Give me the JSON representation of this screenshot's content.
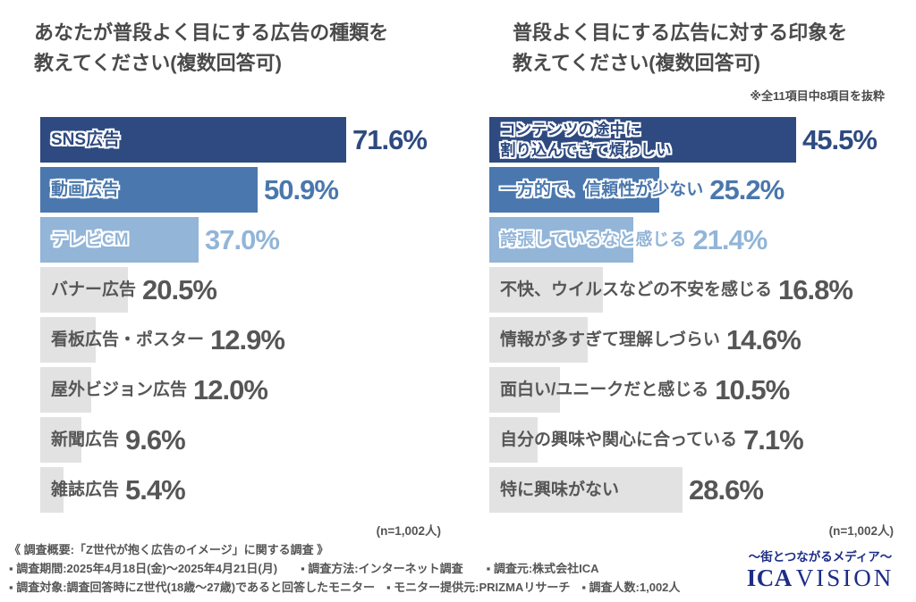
{
  "titles": {
    "left_line1": "あなたが普段よく目にする広告の種類を",
    "left_line2": "教えてください(複数回答可)",
    "right_line1": "普段よく目にする広告に対する印象を",
    "right_line2": "教えてください(複数回答可)"
  },
  "colors": {
    "navy": "#2e4a80",
    "blue": "#4a77ad",
    "light_blue": "#92b5d8",
    "gray_bar": "#e2e2e2",
    "gray_text": "#565656",
    "title_text": "#4a4a4a",
    "footer_text": "#555555",
    "logo_navy": "#1d2d87"
  },
  "chart_data": [
    {
      "type": "bar",
      "orientation": "horizontal",
      "title": "あなたが普段よく目にする広告の種類を教えてください(複数回答可)",
      "categories": [
        "SNS広告",
        "動画広告",
        "テレビCM",
        "バナー広告",
        "看板広告・ポスター",
        "屋外ビジョン広告",
        "新聞広告",
        "雑誌広告"
      ],
      "values": [
        71.6,
        50.9,
        37.0,
        20.5,
        12.9,
        12.0,
        9.6,
        5.4
      ],
      "display_values": [
        "71.6%",
        "50.9%",
        "37.0%",
        "20.5%",
        "12.9%",
        "12.0%",
        "9.6%",
        "5.4%"
      ],
      "bar_colors": [
        "#2e4a80",
        "#4a77ad",
        "#92b5d8",
        "#e2e2e2",
        "#e2e2e2",
        "#e2e2e2",
        "#e2e2e2",
        "#e2e2e2"
      ],
      "unit": "%",
      "value_range": [
        0,
        100
      ],
      "n": "(n=1,002人)"
    },
    {
      "type": "bar",
      "orientation": "horizontal",
      "title": "普段よく目にする広告に対する印象を教えてください(複数回答可)",
      "note": "※全11項目中8項目を抜粋",
      "categories": [
        "コンテンツの途中に\n割り込んできて煩わしい",
        "一方的で、信頼性が少ない",
        "誇張しているなと感じる",
        "不快、ウイルスなどの不安を感じる",
        "情報が多すぎて理解しづらい",
        "面白い/ユニークだと感じる",
        "自分の興味や関心に合っている",
        "特に興味がない"
      ],
      "values": [
        45.5,
        25.2,
        21.4,
        16.8,
        14.6,
        10.5,
        7.1,
        28.6
      ],
      "display_values": [
        "45.5%",
        "25.2%",
        "21.4%",
        "16.8%",
        "14.6%",
        "10.5%",
        "7.1%",
        "28.6%"
      ],
      "bar_colors": [
        "#2e4a80",
        "#4a77ad",
        "#92b5d8",
        "#e2e2e2",
        "#e2e2e2",
        "#e2e2e2",
        "#e2e2e2",
        "#e2e2e2"
      ],
      "unit": "%",
      "value_range": [
        0,
        100
      ],
      "n": "(n=1,002人)"
    }
  ],
  "footer": {
    "line1": "《 調査概要:「Z世代が抱く広告のイメージ」に関する調査 》",
    "line2": "▪ 調査期間:2025年4月18日(金)〜2025年4月21日(月)　　▪ 調査方法:インターネット調査　　▪ 調査元:株式会社ICA",
    "line3": "▪ 調査対象:調査回答時にZ世代(18歳〜27歳)であると回答したモニター　▪ モニター提供元:PRIZMAリサーチ　▪ 調査人数:1,002人"
  },
  "logo": {
    "tagline": "〜街とつながるメディア〜",
    "brand_strong": "ICA",
    "brand_rest": "VISION"
  }
}
